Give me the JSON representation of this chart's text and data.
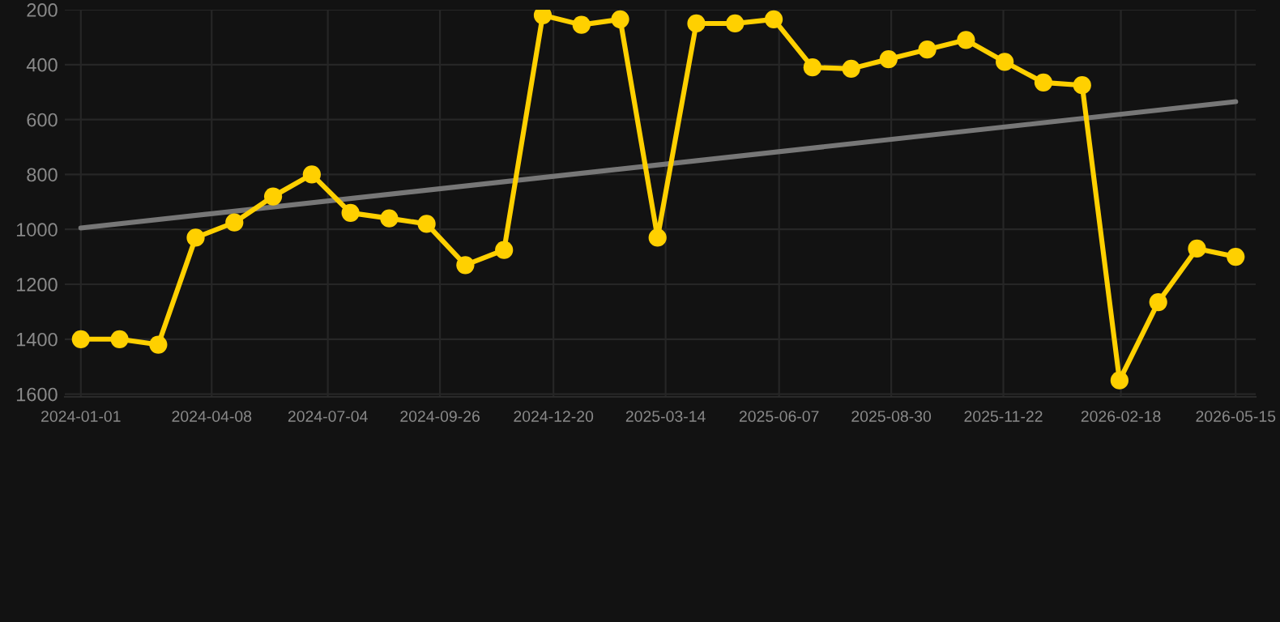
{
  "chart_data": {
    "type": "line",
    "x": [
      "2024-01-01",
      "2024-01-30",
      "2024-02-28",
      "2024-03-27",
      "2024-04-25",
      "2024-05-24",
      "2024-06-22",
      "2024-07-21",
      "2024-08-19",
      "2024-09-16",
      "2024-10-15",
      "2024-11-13",
      "2024-12-12",
      "2025-01-10",
      "2025-02-08",
      "2025-03-08",
      "2025-04-06",
      "2025-05-05",
      "2025-06-03",
      "2025-07-02",
      "2025-07-31",
      "2025-08-28",
      "2025-09-26",
      "2025-10-25",
      "2025-11-23",
      "2025-12-22",
      "2026-01-20",
      "2026-02-17",
      "2026-03-18",
      "2026-04-16",
      "2026-05-15"
    ],
    "series": [
      {
        "color": "#ffd000",
        "marker": "circle",
        "values": [
          1400,
          1400,
          1420,
          1030,
          975,
          880,
          800,
          940,
          960,
          980,
          1130,
          1075,
          220,
          255,
          235,
          1030,
          250,
          250,
          235,
          410,
          415,
          380,
          345,
          310,
          390,
          465,
          475,
          1550,
          1265,
          1070,
          1100
        ]
      },
      {
        "color": "#777777",
        "marker": "none",
        "x": [
          "2024-01-01",
          "2026-05-15"
        ],
        "values": [
          995,
          535
        ]
      }
    ],
    "ylim": [
      1610,
      200
    ],
    "yticks": [
      200,
      400,
      600,
      800,
      1000,
      1200,
      1400,
      1600
    ],
    "xlim": [
      "2023-12-20",
      "2026-05-30"
    ],
    "xticks": [
      "2024-01-01",
      "2024-04-08",
      "2024-07-04",
      "2024-09-26",
      "2024-12-20",
      "2025-03-14",
      "2025-06-07",
      "2025-08-30",
      "2025-11-22",
      "2026-02-18",
      "2026-05-15"
    ],
    "grid": true,
    "line_style": "solid"
  }
}
